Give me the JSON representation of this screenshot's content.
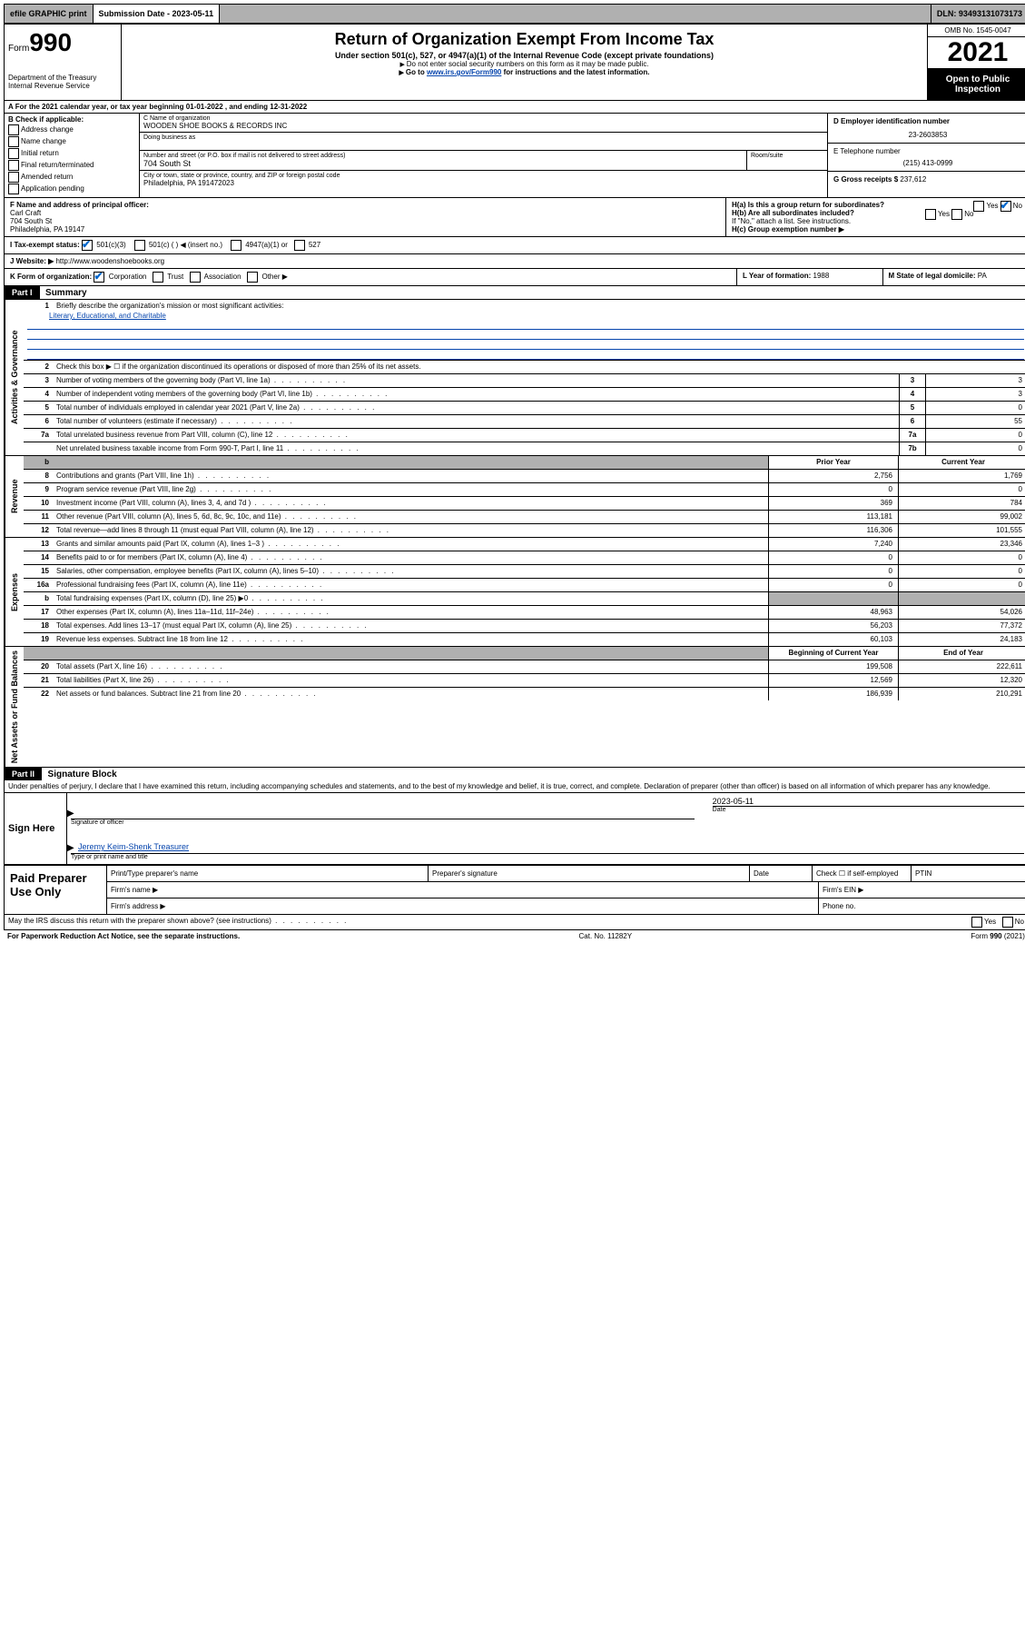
{
  "topbar": {
    "efile": "efile GRAPHIC print",
    "submission": "Submission Date - 2023-05-11",
    "dln": "DLN: 93493131073173"
  },
  "header": {
    "form_label": "Form",
    "form_num": "990",
    "dept": "Department of the Treasury",
    "irs": "Internal Revenue Service",
    "title": "Return of Organization Exempt From Income Tax",
    "subtitle": "Under section 501(c), 527, or 4947(a)(1) of the Internal Revenue Code (except private foundations)",
    "note1": "Do not enter social security numbers on this form as it may be made public.",
    "note2_pre": "Go to ",
    "note2_link": "www.irs.gov/Form990",
    "note2_post": " for instructions and the latest information.",
    "omb": "OMB No. 1545-0047",
    "year": "2021",
    "open": "Open to Public Inspection"
  },
  "row_a": "A For the 2021 calendar year, or tax year beginning 01-01-2022  , and ending 12-31-2022",
  "box_b": {
    "label": "B Check if applicable:",
    "items": [
      "Address change",
      "Name change",
      "Initial return",
      "Final return/terminated",
      "Amended return",
      "Application pending"
    ]
  },
  "box_c": {
    "name_label": "C Name of organization",
    "name": "WOODEN SHOE BOOKS & RECORDS INC",
    "dba_label": "Doing business as",
    "street_label": "Number and street (or P.O. box if mail is not delivered to street address)",
    "room_label": "Room/suite",
    "street": "704 South St",
    "city_label": "City or town, state or province, country, and ZIP or foreign postal code",
    "city": "Philadelphia, PA  191472023"
  },
  "box_d": {
    "label": "D Employer identification number",
    "ein": "23-2603853",
    "phone_label": "E Telephone number",
    "phone": "(215) 413-0999",
    "gross_label": "G Gross receipts $",
    "gross": "237,612"
  },
  "box_f": {
    "label": "F Name and address of principal officer:",
    "name": "Carl Craft",
    "street": "704 South St",
    "city": "Philadelphia, PA  19147"
  },
  "box_h": {
    "ha": "H(a)  Is this a group return for subordinates?",
    "hb": "H(b)  Are all subordinates included?",
    "hb_note": "If \"No,\" attach a list. See instructions.",
    "hc": "H(c)  Group exemption number ▶",
    "yes": "Yes",
    "no": "No"
  },
  "box_i": {
    "label": "I  Tax-exempt status:",
    "opt1": "501(c)(3)",
    "opt2": "501(c) (   ) ◀ (insert no.)",
    "opt3": "4947(a)(1) or",
    "opt4": "527"
  },
  "box_j": {
    "label": "J  Website: ▶",
    "url": "http://www.woodenshoebooks.org"
  },
  "box_k": {
    "label": "K Form of organization:",
    "corp": "Corporation",
    "trust": "Trust",
    "assoc": "Association",
    "other": "Other ▶"
  },
  "box_l": {
    "label": "L Year of formation:",
    "val": "1988"
  },
  "box_m": {
    "label": "M State of legal domicile:",
    "val": "PA"
  },
  "part1": {
    "header": "Part I",
    "title": "Summary",
    "line1_label": "Briefly describe the organization's mission or most significant activities:",
    "line1_val": "Literary, Educational, and Charitable",
    "line2": "Check this box ▶ ☐  if the organization discontinued its operations or disposed of more than 25% of its net assets.",
    "vert_gov": "Activities & Governance",
    "vert_rev": "Revenue",
    "vert_exp": "Expenses",
    "vert_net": "Net Assets or Fund Balances",
    "prior_head": "Prior Year",
    "curr_head": "Current Year",
    "begin_head": "Beginning of Current Year",
    "end_head": "End of Year"
  },
  "gov_lines": [
    {
      "n": "3",
      "t": "Number of voting members of the governing body (Part VI, line 1a)",
      "box": "3",
      "v": "3"
    },
    {
      "n": "4",
      "t": "Number of independent voting members of the governing body (Part VI, line 1b)",
      "box": "4",
      "v": "3"
    },
    {
      "n": "5",
      "t": "Total number of individuals employed in calendar year 2021 (Part V, line 2a)",
      "box": "5",
      "v": "0"
    },
    {
      "n": "6",
      "t": "Total number of volunteers (estimate if necessary)",
      "box": "6",
      "v": "55"
    },
    {
      "n": "7a",
      "t": "Total unrelated business revenue from Part VIII, column (C), line 12",
      "box": "7a",
      "v": "0"
    },
    {
      "n": "",
      "t": "Net unrelated business taxable income from Form 990-T, Part I, line 11",
      "box": "7b",
      "v": "0"
    }
  ],
  "rev_lines": [
    {
      "n": "8",
      "t": "Contributions and grants (Part VIII, line 1h)",
      "p": "2,756",
      "c": "1,769"
    },
    {
      "n": "9",
      "t": "Program service revenue (Part VIII, line 2g)",
      "p": "0",
      "c": "0"
    },
    {
      "n": "10",
      "t": "Investment income (Part VIII, column (A), lines 3, 4, and 7d )",
      "p": "369",
      "c": "784"
    },
    {
      "n": "11",
      "t": "Other revenue (Part VIII, column (A), lines 5, 6d, 8c, 9c, 10c, and 11e)",
      "p": "113,181",
      "c": "99,002"
    },
    {
      "n": "12",
      "t": "Total revenue—add lines 8 through 11 (must equal Part VIII, column (A), line 12)",
      "p": "116,306",
      "c": "101,555"
    }
  ],
  "exp_lines": [
    {
      "n": "13",
      "t": "Grants and similar amounts paid (Part IX, column (A), lines 1–3 )",
      "p": "7,240",
      "c": "23,346"
    },
    {
      "n": "14",
      "t": "Benefits paid to or for members (Part IX, column (A), line 4)",
      "p": "0",
      "c": "0"
    },
    {
      "n": "15",
      "t": "Salaries, other compensation, employee benefits (Part IX, column (A), lines 5–10)",
      "p": "0",
      "c": "0"
    },
    {
      "n": "16a",
      "t": "Professional fundraising fees (Part IX, column (A), line 11e)",
      "p": "0",
      "c": "0"
    },
    {
      "n": "b",
      "t": "Total fundraising expenses (Part IX, column (D), line 25) ▶0",
      "p": "",
      "c": "",
      "grey": true
    },
    {
      "n": "17",
      "t": "Other expenses (Part IX, column (A), lines 11a–11d, 11f–24e)",
      "p": "48,963",
      "c": "54,026"
    },
    {
      "n": "18",
      "t": "Total expenses. Add lines 13–17 (must equal Part IX, column (A), line 25)",
      "p": "56,203",
      "c": "77,372"
    },
    {
      "n": "19",
      "t": "Revenue less expenses. Subtract line 18 from line 12",
      "p": "60,103",
      "c": "24,183"
    }
  ],
  "net_lines": [
    {
      "n": "20",
      "t": "Total assets (Part X, line 16)",
      "p": "199,508",
      "c": "222,611"
    },
    {
      "n": "21",
      "t": "Total liabilities (Part X, line 26)",
      "p": "12,569",
      "c": "12,320"
    },
    {
      "n": "22",
      "t": "Net assets or fund balances. Subtract line 21 from line 20",
      "p": "186,939",
      "c": "210,291"
    }
  ],
  "part2": {
    "header": "Part II",
    "title": "Signature Block",
    "declare": "Under penalties of perjury, I declare that I have examined this return, including accompanying schedules and statements, and to the best of my knowledge and belief, it is true, correct, and complete. Declaration of preparer (other than officer) is based on all information of which preparer has any knowledge.",
    "sign_here": "Sign Here",
    "sig_officer": "Signature of officer",
    "date": "Date",
    "date_val": "2023-05-11",
    "officer_name": "Jeremy Keim-Shenk  Treasurer",
    "type_name": "Type or print name and title",
    "paid": "Paid Preparer Use Only",
    "print_name": "Print/Type preparer's name",
    "prep_sig": "Preparer's signature",
    "check_self": "Check ☐ if self-employed",
    "ptin": "PTIN",
    "firm_name": "Firm's name  ▶",
    "firm_ein": "Firm's EIN ▶",
    "firm_addr": "Firm's address ▶",
    "phone": "Phone no."
  },
  "footer": {
    "discuss": "May the IRS discuss this return with the preparer shown above? (see instructions)",
    "paperwork": "For Paperwork Reduction Act Notice, see the separate instructions.",
    "cat": "Cat. No. 11282Y",
    "form": "Form 990 (2021)",
    "yes": "Yes",
    "no": "No"
  }
}
